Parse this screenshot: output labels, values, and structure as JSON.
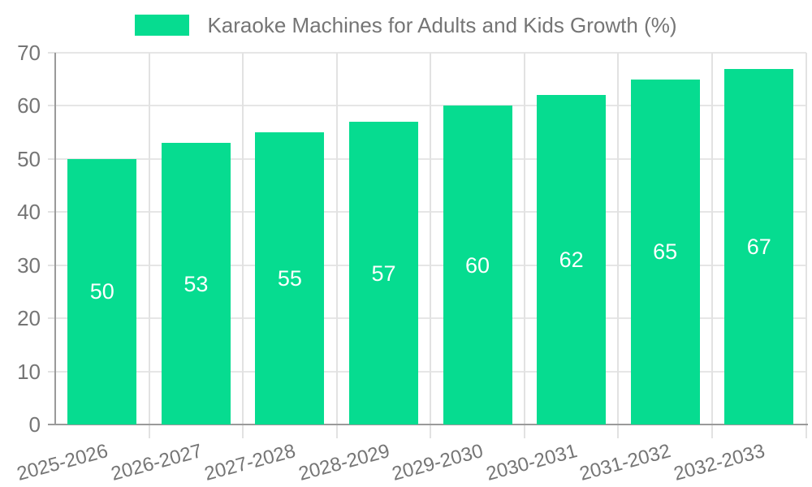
{
  "chart_data": {
    "type": "bar",
    "title": "Karaoke Machines for Adults and Kids Growth (%)",
    "categories": [
      "2025-2026",
      "2026-2027",
      "2027-2028",
      "2028-2029",
      "2029-2030",
      "2030-2031",
      "2031-2032",
      "2032-2033"
    ],
    "values": [
      50,
      53,
      55,
      57,
      60,
      62,
      65,
      67
    ],
    "value_labels": [
      "50",
      "53",
      "55",
      "57",
      "60",
      "62",
      "65",
      "67"
    ],
    "xlabel": "",
    "ylabel": "",
    "ylim": [
      0,
      70
    ],
    "yticks": [
      0,
      10,
      20,
      30,
      40,
      50,
      60,
      70
    ],
    "ytick_labels": [
      "0",
      "10",
      "20",
      "30",
      "40",
      "50",
      "60",
      "70"
    ],
    "grid": true,
    "legend_position": "top",
    "x_label_rotation_deg": -15,
    "colors": {
      "bar": "#06dc90",
      "value_label": "#ffffff",
      "tick_label": "#757575",
      "legend_text": "#757575",
      "gridline": "#e2e2e2",
      "axis": "#9a9a9a",
      "background": "#ffffff"
    }
  }
}
